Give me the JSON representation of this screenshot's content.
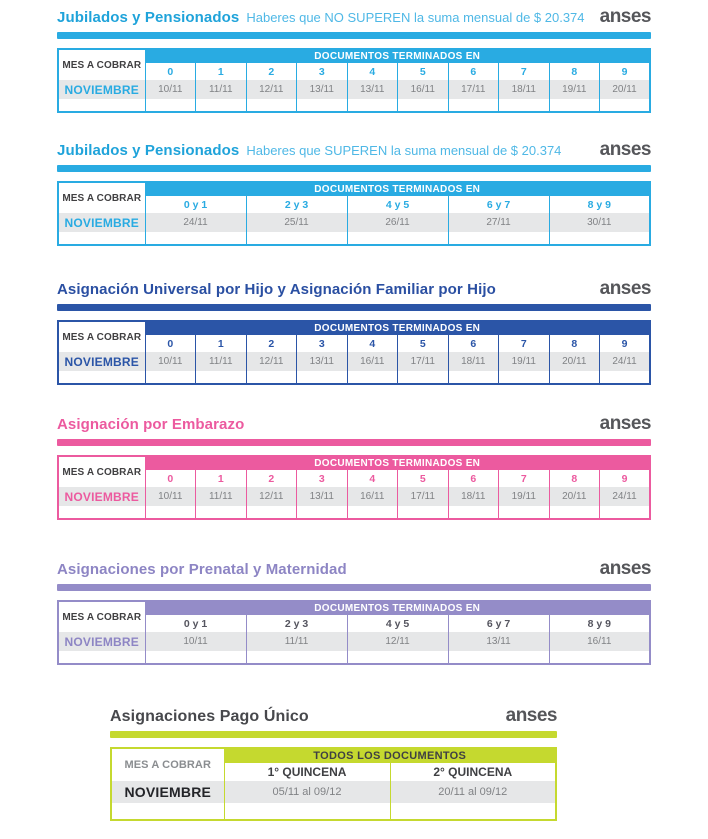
{
  "brand": {
    "logo_text": "anses"
  },
  "shared": {
    "page_bg": "#ffffff",
    "logo_color": "#55565a",
    "month_row_bg": "#e6e7e8",
    "date_color": "#808285"
  },
  "sections": [
    {
      "name": "jubilados-y-pensionados-no-superen",
      "title": "Jubilados y Pensionados",
      "subtitle": "Haberes que NO SUPEREN la suma mensual de $ 20.374",
      "row_label": "MES A COBRAR",
      "docs_header": "DOCUMENTOS TERMINADOS EN",
      "month": "NOVIEMBRE",
      "columns": [
        "0",
        "1",
        "2",
        "3",
        "4",
        "5",
        "6",
        "7",
        "8",
        "9"
      ],
      "dates": [
        "10/11",
        "11/11",
        "12/11",
        "13/11",
        "13/11",
        "16/11",
        "17/11",
        "18/11",
        "19/11",
        "20/11"
      ],
      "theme": {
        "accent": "#29abe2",
        "title_color": "#1fa3da",
        "subtitle_color": "#4fb8e6",
        "header_text": "#ffffff",
        "digit_color": "#29abe2",
        "month_color": "#29abe2",
        "label_color": "#414042"
      }
    },
    {
      "name": "jubilados-y-pensionados-superen",
      "title": "Jubilados y Pensionados",
      "subtitle": "Haberes que SUPEREN la suma mensual de $ 20.374",
      "row_label": "MES A COBRAR",
      "docs_header": "DOCUMENTOS TERMINADOS EN",
      "month": "NOVIEMBRE",
      "columns": [
        "0 y 1",
        "2 y 3",
        "4 y 5",
        "6 y 7",
        "8 y 9"
      ],
      "dates": [
        "24/11",
        "25/11",
        "26/11",
        "27/11",
        "30/11"
      ],
      "theme": {
        "accent": "#29abe2",
        "title_color": "#1fa3da",
        "subtitle_color": "#4fb8e6",
        "header_text": "#ffffff",
        "digit_color": "#29abe2",
        "month_color": "#29abe2",
        "label_color": "#414042"
      }
    },
    {
      "name": "asignacion-universal-por-hijo-y-familiar-por-hijo",
      "title": "Asignación Universal por Hijo y Asignación Familiar por Hijo",
      "subtitle": "",
      "row_label": "MES A COBRAR",
      "docs_header": "DOCUMENTOS TERMINADOS EN",
      "month": "NOVIEMBRE",
      "columns": [
        "0",
        "1",
        "2",
        "3",
        "4",
        "5",
        "6",
        "7",
        "8",
        "9"
      ],
      "dates": [
        "10/11",
        "11/11",
        "12/11",
        "13/11",
        "16/11",
        "17/11",
        "18/11",
        "19/11",
        "20/11",
        "24/11"
      ],
      "theme": {
        "accent": "#2b55a7",
        "title_color": "#2a4fa2",
        "subtitle_color": "#2a4fa2",
        "header_text": "#ffffff",
        "digit_color": "#2b55a7",
        "month_color": "#2b55a7",
        "label_color": "#414042"
      }
    },
    {
      "name": "asignacion-por-embarazo",
      "title": "Asignación por Embarazo",
      "subtitle": "",
      "row_label": "MES A COBRAR",
      "docs_header": "DOCUMENTOS TERMINADOS EN",
      "month": "NOVIEMBRE",
      "columns": [
        "0",
        "1",
        "2",
        "3",
        "4",
        "5",
        "6",
        "7",
        "8",
        "9"
      ],
      "dates": [
        "10/11",
        "11/11",
        "12/11",
        "13/11",
        "16/11",
        "17/11",
        "18/11",
        "19/11",
        "20/11",
        "24/11"
      ],
      "theme": {
        "accent": "#ec5a9f",
        "title_color": "#ec5a9f",
        "subtitle_color": "#ec5a9f",
        "header_text": "#ffffff",
        "digit_color": "#ec5a9f",
        "month_color": "#ec5a9f",
        "label_color": "#414042"
      }
    },
    {
      "name": "asignaciones-por-prenatal-y-maternidad",
      "title": "Asignaciones por Prenatal y Maternidad",
      "subtitle": "",
      "row_label": "MES A COBRAR",
      "docs_header": "DOCUMENTOS TERMINADOS EN",
      "month": "NOVIEMBRE",
      "columns": [
        "0 y 1",
        "2 y 3",
        "4 y 5",
        "6 y 7",
        "8 y 9"
      ],
      "dates": [
        "10/11",
        "11/11",
        "12/11",
        "13/11",
        "16/11"
      ],
      "theme": {
        "accent": "#948cc8",
        "title_color": "#8d85c4",
        "subtitle_color": "#8d85c4",
        "header_text": "#ffffff",
        "digit_color": "#55555f",
        "month_color": "#8d85c4",
        "label_color": "#414042"
      }
    },
    {
      "name": "asignaciones-pago-unico",
      "title": "Asignaciones Pago Único",
      "subtitle": "",
      "row_label": "MES A COBRAR",
      "docs_header": "TODOS LOS DOCUMENTOS",
      "month": "NOVIEMBRE",
      "columns": [
        "1° QUINCENA",
        "2° QUINCENA"
      ],
      "dates": [
        "05/11 al 09/12",
        "20/11 al 09/12"
      ],
      "theme": {
        "accent": "#c5d92f",
        "title_color": "#47484c",
        "subtitle_color": "#47484c",
        "header_text": "#3f4043",
        "digit_color": "#3f4043",
        "month_color": "#232428",
        "label_color": "#8a8d90"
      }
    }
  ]
}
